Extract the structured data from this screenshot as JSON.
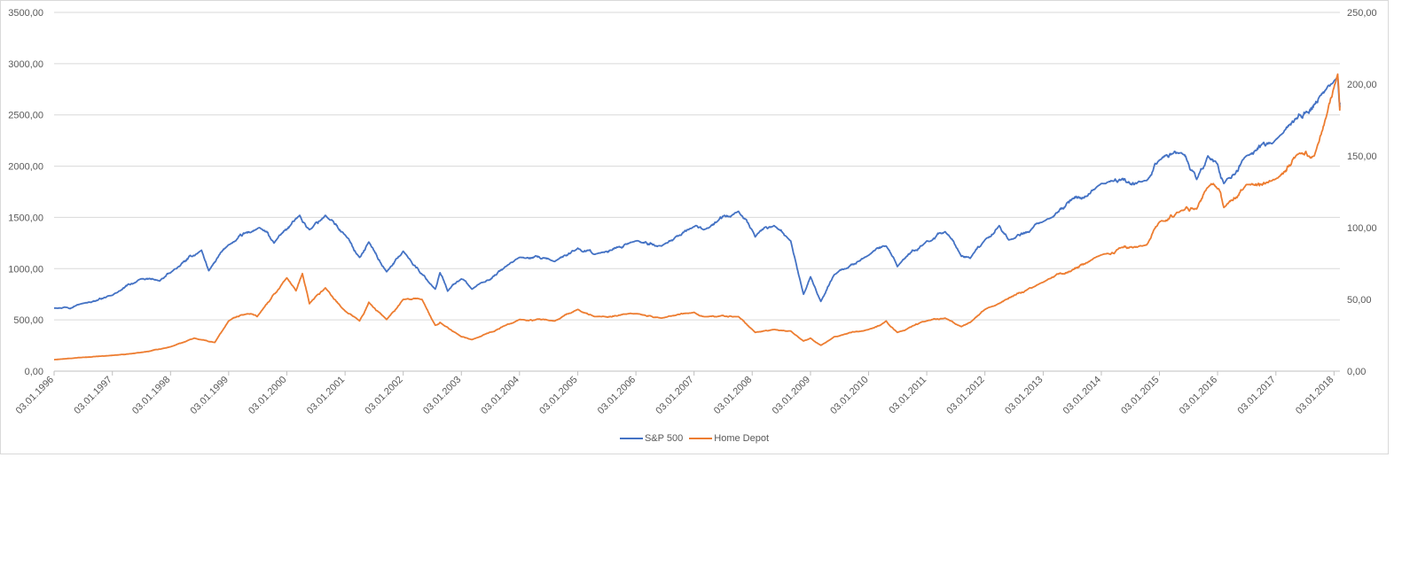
{
  "chart_data": {
    "type": "line",
    "title": "",
    "xlabel": "",
    "ylabel": "",
    "ylim": [
      0,
      3500
    ],
    "y2lim": [
      0,
      250
    ],
    "y_ticks": [
      "0,00",
      "500,00",
      "1000,00",
      "1500,00",
      "2000,00",
      "2500,00",
      "3000,00",
      "3500,00"
    ],
    "y2_ticks": [
      "0,00",
      "50,00",
      "100,00",
      "150,00",
      "200,00",
      "250,00"
    ],
    "x_ticks": [
      "03.01.1996",
      "03.01.1997",
      "03.01.1998",
      "03.01.1999",
      "03.01.2000",
      "03.01.2001",
      "03.01.2002",
      "03.01.2003",
      "03.01.2004",
      "03.01.2005",
      "03.01.2006",
      "03.01.2007",
      "03.01.2008",
      "03.01.2009",
      "03.01.2010",
      "03.01.2011",
      "03.01.2012",
      "03.01.2013",
      "03.01.2014",
      "03.01.2015",
      "03.01.2016",
      "03.01.2017",
      "03.01.2018"
    ],
    "x_range": [
      "1996-01-03",
      "2018-02-09"
    ],
    "grid": true,
    "legend_position": "bottom",
    "series": [
      {
        "name": "S&P 500",
        "axis": "left",
        "color": "#4472c4",
        "points": [
          [
            "1996-01-03",
            615
          ],
          [
            "1996-07-01",
            660
          ],
          [
            "1997-01-03",
            740
          ],
          [
            "1997-07-01",
            900
          ],
          [
            "1997-10-27",
            880
          ],
          [
            "1998-01-03",
            960
          ],
          [
            "1998-07-17",
            1180
          ],
          [
            "1998-08-31",
            980
          ],
          [
            "1998-12-31",
            1230
          ],
          [
            "1999-07-15",
            1400
          ],
          [
            "1999-10-15",
            1250
          ],
          [
            "2000-03-24",
            1520
          ],
          [
            "2000-05-24",
            1380
          ],
          [
            "2000-09-01",
            1520
          ],
          [
            "2001-01-03",
            1330
          ],
          [
            "2001-04-04",
            1110
          ],
          [
            "2001-06-01",
            1260
          ],
          [
            "2001-09-21",
            970
          ],
          [
            "2002-01-03",
            1170
          ],
          [
            "2002-07-23",
            800
          ],
          [
            "2002-08-22",
            960
          ],
          [
            "2002-10-09",
            780
          ],
          [
            "2003-01-03",
            900
          ],
          [
            "2003-03-11",
            800
          ],
          [
            "2004-01-03",
            1110
          ],
          [
            "2004-08-12",
            1070
          ],
          [
            "2005-01-03",
            1200
          ],
          [
            "2005-04-20",
            1140
          ],
          [
            "2006-01-03",
            1270
          ],
          [
            "2006-06-13",
            1220
          ],
          [
            "2007-01-03",
            1410
          ],
          [
            "2007-03-05",
            1380
          ],
          [
            "2007-10-09",
            1560
          ],
          [
            "2008-01-22",
            1310
          ],
          [
            "2008-05-19",
            1420
          ],
          [
            "2008-09-01",
            1270
          ],
          [
            "2008-11-20",
            750
          ],
          [
            "2009-01-03",
            920
          ],
          [
            "2009-03-09",
            680
          ],
          [
            "2009-06-01",
            940
          ],
          [
            "2010-01-03",
            1130
          ],
          [
            "2010-04-23",
            1220
          ],
          [
            "2010-07-02",
            1020
          ],
          [
            "2011-01-03",
            1270
          ],
          [
            "2011-04-29",
            1360
          ],
          [
            "2011-08-08",
            1120
          ],
          [
            "2011-10-03",
            1100
          ],
          [
            "2012-01-03",
            1280
          ],
          [
            "2012-04-02",
            1420
          ],
          [
            "2012-06-01",
            1280
          ],
          [
            "2013-01-03",
            1460
          ],
          [
            "2014-01-03",
            1830
          ],
          [
            "2014-10-15",
            1860
          ],
          [
            "2015-01-03",
            2060
          ],
          [
            "2015-05-21",
            2130
          ],
          [
            "2015-08-25",
            1870
          ],
          [
            "2015-11-03",
            2100
          ],
          [
            "2016-01-03",
            2020
          ],
          [
            "2016-02-11",
            1830
          ],
          [
            "2016-07-01",
            2100
          ],
          [
            "2017-01-03",
            2260
          ],
          [
            "2018-01-26",
            2870
          ],
          [
            "2018-02-08",
            2580
          ],
          [
            "2018-02-09",
            2620
          ]
        ]
      },
      {
        "name": "Home Depot",
        "axis": "right",
        "color": "#ed7d31",
        "points": [
          [
            "1996-01-03",
            8
          ],
          [
            "1997-01-03",
            11
          ],
          [
            "1997-07-01",
            13
          ],
          [
            "1998-01-03",
            17
          ],
          [
            "1998-06-01",
            23
          ],
          [
            "1998-10-08",
            20
          ],
          [
            "1999-01-03",
            35
          ],
          [
            "1999-05-01",
            40
          ],
          [
            "1999-07-01",
            38
          ],
          [
            "2000-01-03",
            65
          ],
          [
            "2000-03-01",
            56
          ],
          [
            "2000-04-10",
            68
          ],
          [
            "2000-05-24",
            47
          ],
          [
            "2000-09-01",
            58
          ],
          [
            "2001-01-03",
            42
          ],
          [
            "2001-04-04",
            35
          ],
          [
            "2001-06-01",
            48
          ],
          [
            "2001-09-21",
            36
          ],
          [
            "2002-01-03",
            50
          ],
          [
            "2002-05-01",
            50
          ],
          [
            "2002-07-23",
            32
          ],
          [
            "2002-08-22",
            34
          ],
          [
            "2003-01-03",
            24
          ],
          [
            "2003-03-11",
            22
          ],
          [
            "2004-01-03",
            36
          ],
          [
            "2004-08-12",
            35
          ],
          [
            "2005-01-03",
            43
          ],
          [
            "2005-04-20",
            38
          ],
          [
            "2006-01-03",
            40
          ],
          [
            "2006-06-13",
            37
          ],
          [
            "2007-01-03",
            41
          ],
          [
            "2007-03-05",
            38
          ],
          [
            "2007-10-09",
            38
          ],
          [
            "2008-01-22",
            27
          ],
          [
            "2008-05-19",
            29
          ],
          [
            "2008-09-01",
            28
          ],
          [
            "2008-11-20",
            21
          ],
          [
            "2009-01-03",
            23
          ],
          [
            "2009-03-09",
            18
          ],
          [
            "2009-06-01",
            24
          ],
          [
            "2010-01-03",
            29
          ],
          [
            "2010-04-23",
            35
          ],
          [
            "2010-07-02",
            27
          ],
          [
            "2011-01-03",
            35
          ],
          [
            "2011-04-29",
            37
          ],
          [
            "2011-08-08",
            31
          ],
          [
            "2011-10-03",
            34
          ],
          [
            "2012-01-03",
            43
          ],
          [
            "2013-01-03",
            62
          ],
          [
            "2014-01-03",
            81
          ],
          [
            "2014-10-15",
            88
          ],
          [
            "2015-01-03",
            104
          ],
          [
            "2015-05-21",
            112
          ],
          [
            "2015-08-25",
            113
          ],
          [
            "2015-11-03",
            128
          ],
          [
            "2016-01-03",
            127
          ],
          [
            "2016-02-11",
            114
          ],
          [
            "2016-07-01",
            130
          ],
          [
            "2017-01-03",
            134
          ],
          [
            "2017-06-01",
            152
          ],
          [
            "2017-09-01",
            150
          ],
          [
            "2018-01-26",
            207
          ],
          [
            "2018-02-08",
            182
          ],
          [
            "2018-02-09",
            184
          ]
        ]
      }
    ]
  }
}
